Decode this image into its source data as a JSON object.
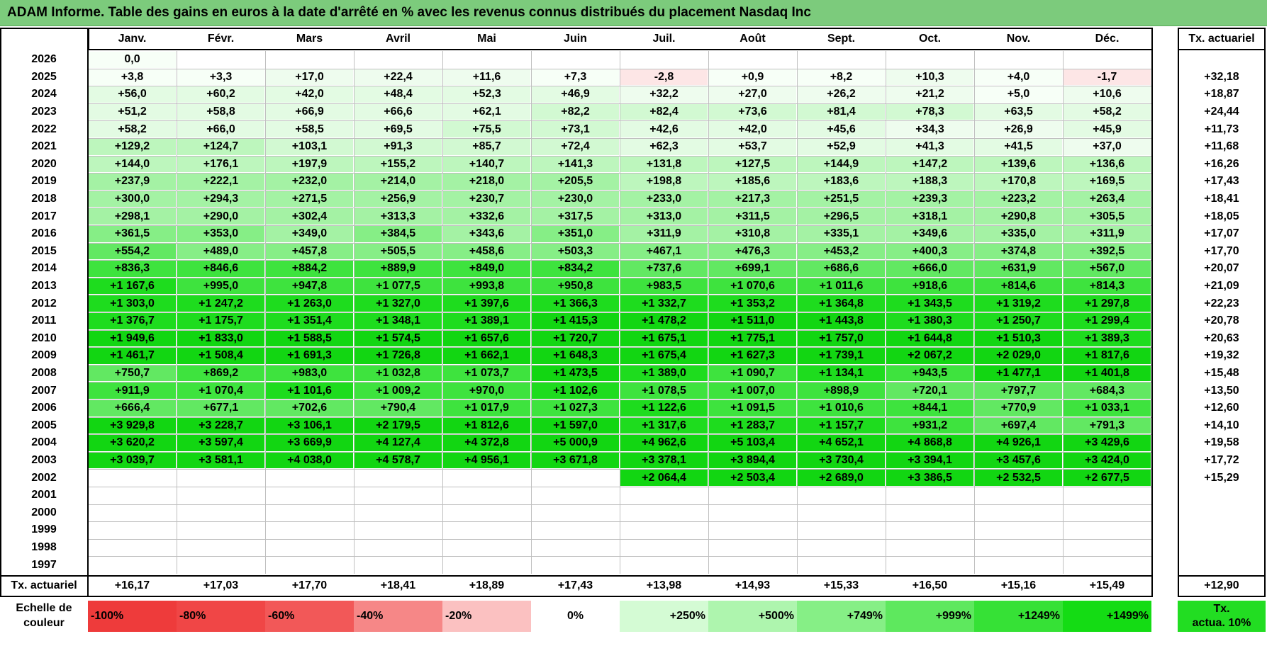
{
  "title": "ADAM Informe. Table des gains en euros à la date d'arrêté en % avec les revenus connus distribués du placement Nasdaq Inc",
  "months": [
    "Janv.",
    "Févr.",
    "Mars",
    "Avril",
    "Mai",
    "Juin",
    "Juil.",
    "Août",
    "Sept.",
    "Oct.",
    "Nov.",
    "Déc."
  ],
  "tx_header": "Tx. actuariel",
  "rows": [
    {
      "year": "2026",
      "values": [
        "0,0",
        "",
        "",
        "",
        "",
        "",
        "",
        "",
        "",
        "",
        "",
        ""
      ],
      "tx": ""
    },
    {
      "year": "2025",
      "values": [
        "+3,8",
        "+3,3",
        "+17,0",
        "+22,4",
        "+11,6",
        "+7,3",
        "-2,8",
        "+0,9",
        "+8,2",
        "+10,3",
        "+4,0",
        "-1,7"
      ],
      "tx": "+32,18"
    },
    {
      "year": "2024",
      "values": [
        "+56,0",
        "+60,2",
        "+42,0",
        "+48,4",
        "+52,3",
        "+46,9",
        "+32,2",
        "+27,0",
        "+26,2",
        "+21,2",
        "+5,0",
        "+10,6"
      ],
      "tx": "+18,87"
    },
    {
      "year": "2023",
      "values": [
        "+51,2",
        "+58,8",
        "+66,9",
        "+66,6",
        "+62,1",
        "+82,2",
        "+82,4",
        "+73,6",
        "+81,4",
        "+78,3",
        "+63,5",
        "+58,2"
      ],
      "tx": "+24,44"
    },
    {
      "year": "2022",
      "values": [
        "+58,2",
        "+66,0",
        "+58,5",
        "+69,5",
        "+75,5",
        "+73,1",
        "+42,6",
        "+42,0",
        "+45,6",
        "+34,3",
        "+26,9",
        "+45,9"
      ],
      "tx": "+11,73"
    },
    {
      "year": "2021",
      "values": [
        "+129,2",
        "+124,7",
        "+103,1",
        "+91,3",
        "+85,7",
        "+72,4",
        "+62,3",
        "+53,7",
        "+52,9",
        "+41,3",
        "+41,5",
        "+37,0"
      ],
      "tx": "+11,68"
    },
    {
      "year": "2020",
      "values": [
        "+144,0",
        "+176,1",
        "+197,9",
        "+155,2",
        "+140,7",
        "+141,3",
        "+131,8",
        "+127,5",
        "+144,9",
        "+147,2",
        "+139,6",
        "+136,6"
      ],
      "tx": "+16,26"
    },
    {
      "year": "2019",
      "values": [
        "+237,9",
        "+222,1",
        "+232,0",
        "+214,0",
        "+218,0",
        "+205,5",
        "+198,8",
        "+185,6",
        "+183,6",
        "+188,3",
        "+170,8",
        "+169,5"
      ],
      "tx": "+17,43"
    },
    {
      "year": "2018",
      "values": [
        "+300,0",
        "+294,3",
        "+271,5",
        "+256,9",
        "+230,7",
        "+230,0",
        "+233,0",
        "+217,3",
        "+251,5",
        "+239,3",
        "+223,2",
        "+263,4"
      ],
      "tx": "+18,41"
    },
    {
      "year": "2017",
      "values": [
        "+298,1",
        "+290,0",
        "+302,4",
        "+313,3",
        "+332,6",
        "+317,5",
        "+313,0",
        "+311,5",
        "+296,5",
        "+318,1",
        "+290,8",
        "+305,5"
      ],
      "tx": "+18,05"
    },
    {
      "year": "2016",
      "values": [
        "+361,5",
        "+353,0",
        "+349,0",
        "+384,5",
        "+343,6",
        "+351,0",
        "+311,9",
        "+310,8",
        "+335,1",
        "+349,6",
        "+335,0",
        "+311,9"
      ],
      "tx": "+17,07"
    },
    {
      "year": "2015",
      "values": [
        "+554,2",
        "+489,0",
        "+457,8",
        "+505,5",
        "+458,6",
        "+503,3",
        "+467,1",
        "+476,3",
        "+453,2",
        "+400,3",
        "+374,8",
        "+392,5"
      ],
      "tx": "+17,70"
    },
    {
      "year": "2014",
      "values": [
        "+836,3",
        "+846,6",
        "+884,2",
        "+889,9",
        "+849,0",
        "+834,2",
        "+737,6",
        "+699,1",
        "+686,6",
        "+666,0",
        "+631,9",
        "+567,0"
      ],
      "tx": "+20,07"
    },
    {
      "year": "2013",
      "values": [
        "+1 167,6",
        "+995,0",
        "+947,8",
        "+1 077,5",
        "+993,8",
        "+950,8",
        "+983,5",
        "+1 070,6",
        "+1 011,6",
        "+918,6",
        "+814,6",
        "+814,3"
      ],
      "tx": "+21,09"
    },
    {
      "year": "2012",
      "values": [
        "+1 303,0",
        "+1 247,2",
        "+1 263,0",
        "+1 327,0",
        "+1 397,6",
        "+1 366,3",
        "+1 332,7",
        "+1 353,2",
        "+1 364,8",
        "+1 343,5",
        "+1 319,2",
        "+1 297,8"
      ],
      "tx": "+22,23"
    },
    {
      "year": "2011",
      "values": [
        "+1 376,7",
        "+1 175,7",
        "+1 351,4",
        "+1 348,1",
        "+1 389,1",
        "+1 415,3",
        "+1 478,2",
        "+1 511,0",
        "+1 443,8",
        "+1 380,3",
        "+1 250,7",
        "+1 299,4"
      ],
      "tx": "+20,78"
    },
    {
      "year": "2010",
      "values": [
        "+1 949,6",
        "+1 833,0",
        "+1 588,5",
        "+1 574,5",
        "+1 657,6",
        "+1 720,7",
        "+1 675,1",
        "+1 775,1",
        "+1 757,0",
        "+1 644,8",
        "+1 510,3",
        "+1 389,3"
      ],
      "tx": "+20,63"
    },
    {
      "year": "2009",
      "values": [
        "+1 461,7",
        "+1 508,4",
        "+1 691,3",
        "+1 726,8",
        "+1 662,1",
        "+1 648,3",
        "+1 675,4",
        "+1 627,3",
        "+1 739,1",
        "+2 067,2",
        "+2 029,0",
        "+1 817,6"
      ],
      "tx": "+19,32"
    },
    {
      "year": "2008",
      "values": [
        "+750,7",
        "+869,2",
        "+983,0",
        "+1 032,8",
        "+1 073,7",
        "+1 473,5",
        "+1 389,0",
        "+1 090,7",
        "+1 134,1",
        "+943,5",
        "+1 477,1",
        "+1 401,8"
      ],
      "tx": "+15,48"
    },
    {
      "year": "2007",
      "values": [
        "+911,9",
        "+1 070,4",
        "+1 101,6",
        "+1 009,2",
        "+970,0",
        "+1 102,6",
        "+1 078,5",
        "+1 007,0",
        "+898,9",
        "+720,1",
        "+797,7",
        "+684,3"
      ],
      "tx": "+13,50"
    },
    {
      "year": "2006",
      "values": [
        "+666,4",
        "+677,1",
        "+702,6",
        "+790,4",
        "+1 017,9",
        "+1 027,3",
        "+1 122,6",
        "+1 091,5",
        "+1 010,6",
        "+844,1",
        "+770,9",
        "+1 033,1"
      ],
      "tx": "+12,60"
    },
    {
      "year": "2005",
      "values": [
        "+3 929,8",
        "+3 228,7",
        "+3 106,1",
        "+2 179,5",
        "+1 812,6",
        "+1 597,0",
        "+1 317,6",
        "+1 283,7",
        "+1 157,7",
        "+931,2",
        "+697,4",
        "+791,3"
      ],
      "tx": "+14,10"
    },
    {
      "year": "2004",
      "values": [
        "+3 620,2",
        "+3 597,4",
        "+3 669,9",
        "+4 127,4",
        "+4 372,8",
        "+5 000,9",
        "+4 962,6",
        "+5 103,4",
        "+4 652,1",
        "+4 868,8",
        "+4 926,1",
        "+3 429,6"
      ],
      "tx": "+19,58"
    },
    {
      "year": "2003",
      "values": [
        "+3 039,7",
        "+3 581,1",
        "+4 038,0",
        "+4 578,7",
        "+4 956,1",
        "+3 671,8",
        "+3 378,1",
        "+3 894,4",
        "+3 730,4",
        "+3 394,1",
        "+3 457,6",
        "+3 424,0"
      ],
      "tx": "+17,72"
    },
    {
      "year": "2002",
      "values": [
        "",
        "",
        "",
        "",
        "",
        "",
        "+2 064,4",
        "+2 503,4",
        "+2 689,0",
        "+3 386,5",
        "+2 532,5",
        "+2 677,5"
      ],
      "tx": "+15,29"
    },
    {
      "year": "2001",
      "values": [
        "",
        "",
        "",
        "",
        "",
        "",
        "",
        "",
        "",
        "",
        "",
        ""
      ],
      "tx": ""
    },
    {
      "year": "2000",
      "values": [
        "",
        "",
        "",
        "",
        "",
        "",
        "",
        "",
        "",
        "",
        "",
        ""
      ],
      "tx": ""
    },
    {
      "year": "1999",
      "values": [
        "",
        "",
        "",
        "",
        "",
        "",
        "",
        "",
        "",
        "",
        "",
        ""
      ],
      "tx": ""
    },
    {
      "year": "1998",
      "values": [
        "",
        "",
        "",
        "",
        "",
        "",
        "",
        "",
        "",
        "",
        "",
        ""
      ],
      "tx": ""
    },
    {
      "year": "1997",
      "values": [
        "",
        "",
        "",
        "",
        "",
        "",
        "",
        "",
        "",
        "",
        "",
        ""
      ],
      "tx": ""
    }
  ],
  "footer": {
    "label": "Tx. actuariel",
    "values": [
      "+16,17",
      "+17,03",
      "+17,70",
      "+18,41",
      "+18,89",
      "+17,43",
      "+13,98",
      "+14,93",
      "+15,33",
      "+16,50",
      "+15,16",
      "+15,49"
    ],
    "tx": "+12,90"
  },
  "legend": {
    "label_line1": "Echelle de",
    "label_line2": "couleur",
    "items": [
      {
        "text": "-100%",
        "color": "#ee3b3b",
        "align": "left"
      },
      {
        "text": "-80%",
        "color": "#f04646",
        "align": "left"
      },
      {
        "text": "-60%",
        "color": "#f25858",
        "align": "left"
      },
      {
        "text": "-40%",
        "color": "#f68787",
        "align": "left"
      },
      {
        "text": "-20%",
        "color": "#fbc1c1",
        "align": "left"
      },
      {
        "text": "0%",
        "color": "#ffffff",
        "align": "center"
      },
      {
        "text": "+250%",
        "color": "#d4fbd4",
        "align": "right"
      },
      {
        "text": "+500%",
        "color": "#aef5ae",
        "align": "right"
      },
      {
        "text": "+749%",
        "color": "#86ef86",
        "align": "right"
      },
      {
        "text": "+999%",
        "color": "#5ee85e",
        "align": "right"
      },
      {
        "text": "+1249%",
        "color": "#36e136",
        "align": "right"
      },
      {
        "text": "+1499%",
        "color": "#14dc14",
        "align": "right"
      }
    ],
    "tx_line1": "Tx.",
    "tx_line2": "actua. 10%"
  },
  "colors": {
    "title_bg": "#7ccb7c",
    "neg_light": "#fde6e6",
    "pos_scale": [
      "#f7fff7",
      "#eefcee",
      "#e3fbe3",
      "#d2f9d2",
      "#bdf6bd",
      "#a4f2a4",
      "#86ee86",
      "#62e862",
      "#3ee33e",
      "#1edc1e",
      "#12d612"
    ]
  }
}
